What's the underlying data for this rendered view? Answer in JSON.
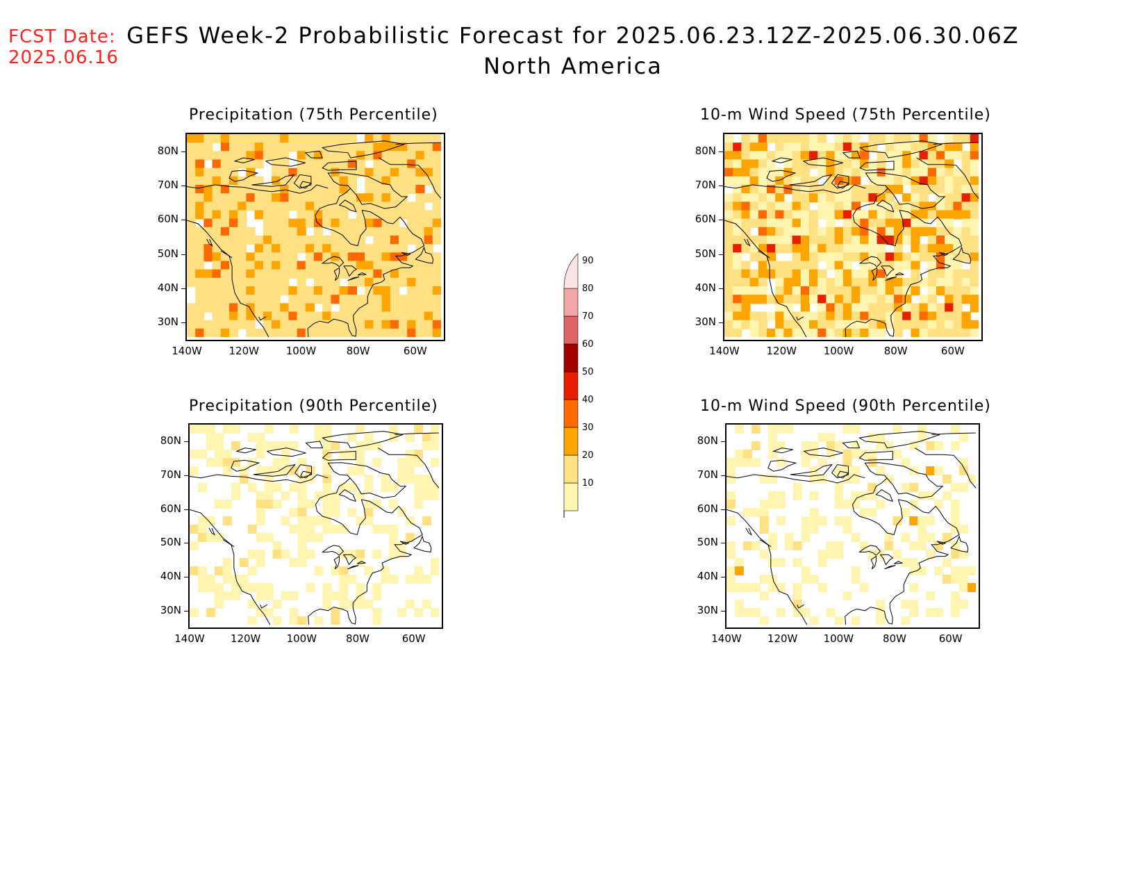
{
  "header": {
    "fcst_label": "FCST Date:",
    "fcst_date": "2025.06.16",
    "title_line1": "GEFS Week-2 Probabilistic Forecast for 2025.06.23.12Z-2025.06.30.06Z",
    "title_line2": "North America"
  },
  "panels": [
    {
      "id": "precip75",
      "title": "Precipitation (75th Percentile)"
    },
    {
      "id": "wind75",
      "title": "10-m Wind Speed (75th Percentile)"
    },
    {
      "id": "precip90",
      "title": "Precipitation (90th Percentile)"
    },
    {
      "id": "wind90",
      "title": "10-m Wind Speed (90th Percentile)"
    }
  ],
  "axes": {
    "lat_labels": [
      "80N",
      "70N",
      "60N",
      "50N",
      "40N",
      "30N"
    ],
    "lon_labels": [
      "140W",
      "120W",
      "100W",
      "80W",
      "60W"
    ]
  },
  "colorbar": {
    "levels": [
      "10",
      "20",
      "30",
      "40",
      "50",
      "60",
      "70",
      "80",
      "90"
    ],
    "colors": [
      "#fff5b0",
      "#ffe082",
      "#ffa500",
      "#ff6a00",
      "#e81e00",
      "#a30000",
      "#e06464",
      "#f4a6a6",
      "#fde4e4"
    ]
  }
}
